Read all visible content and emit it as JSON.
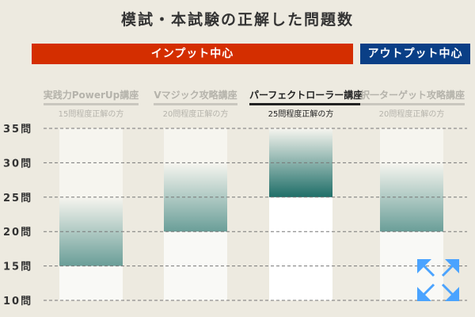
{
  "title": "模試・本試験の正解した問題数",
  "bands": {
    "input": "インプット中心",
    "output": "アウトプット中心"
  },
  "colors": {
    "input": "#d42e00",
    "output": "#0a3f86",
    "bar": "#6a9e98",
    "active_bar": "#1e6e68",
    "expand_icon": "#4aa3ff"
  },
  "courses": [
    {
      "name": "実践力PowerUp講座",
      "sub": "15問程度正解の方",
      "active": false
    },
    {
      "name": "Vマジック攻略講座",
      "sub": "20問程度正解の方",
      "active": false
    },
    {
      "name": "パーフェクトローラー講座",
      "sub": "25問程度正解の方",
      "active": true
    },
    {
      "name": "択一ターゲット攻略講座",
      "sub": "20問程度正解の方",
      "active": false
    }
  ],
  "expand_icon": "expand-arrows-icon",
  "chart_data": {
    "type": "bar",
    "categories": [
      "実践力PowerUp講座",
      "Vマジック攻略講座",
      "パーフェクトローラー講座",
      "択一ターゲット攻略講座"
    ],
    "ranges": [
      [
        15,
        25
      ],
      [
        20,
        30
      ],
      [
        25,
        35
      ],
      [
        20,
        30
      ]
    ],
    "yticks": [
      "10問",
      "15問",
      "20問",
      "25問",
      "30問",
      "35問"
    ],
    "ytick_values": [
      10,
      15,
      20,
      25,
      30,
      35
    ],
    "ylim": [
      10,
      35
    ],
    "grid": true
  }
}
